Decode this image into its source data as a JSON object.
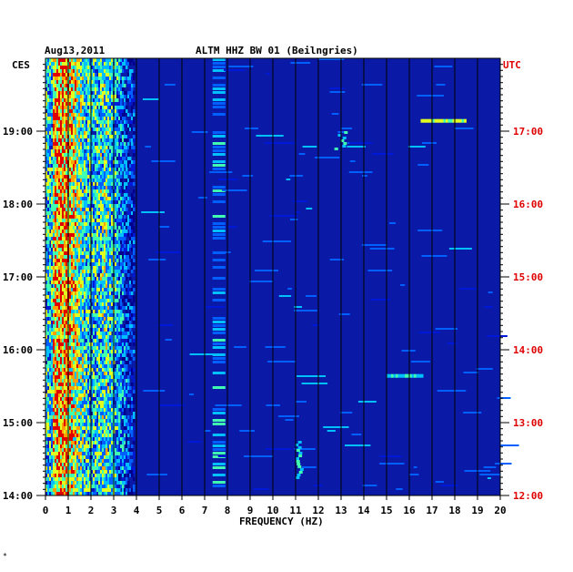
{
  "chart_data": {
    "type": "heatmap",
    "date": "Aug13,2011",
    "title": "ALTM HHZ BW 01 (Beilngries)",
    "left_timezone": "CES",
    "right_timezone": "UTC",
    "xlabel": "FREQUENCY (HZ)",
    "xlim": [
      0,
      20
    ],
    "x_ticks": [
      "0",
      "1",
      "2",
      "3",
      "4",
      "5",
      "6",
      "7",
      "8",
      "9",
      "10",
      "11",
      "12",
      "13",
      "14",
      "15",
      "16",
      "17",
      "18",
      "19",
      "20"
    ],
    "left_ticks": [
      "14:00",
      "15:00",
      "16:00",
      "17:00",
      "18:00",
      "19:00"
    ],
    "right_ticks": [
      "12:00",
      "13:00",
      "14:00",
      "15:00",
      "16:00",
      "17:00"
    ],
    "time_range_ces": [
      "14:00",
      "19:52"
    ],
    "grid": "vertical lines at each 1 Hz",
    "colormap": [
      "#00008c",
      "#0018d8",
      "#0060ff",
      "#00c0ff",
      "#40ffb0",
      "#e0ff20",
      "#ffa000",
      "#e00000"
    ],
    "background_color": "#0a1aa6",
    "features": [
      {
        "name": "broadband microseism/noise band",
        "freq_range_hz": [
          0,
          3.9
        ],
        "time": "entire record",
        "intensity": "high"
      },
      {
        "name": "narrow line",
        "freq_hz": 7.6,
        "time": "entire record",
        "intensity": "medium"
      },
      {
        "name": "event cluster",
        "freq_range_hz": [
          10.9,
          11.2
        ],
        "time_ces": [
          "14:15",
          "14:45"
        ],
        "intensity": "medium"
      },
      {
        "name": "event cluster",
        "freq_range_hz": [
          12.7,
          13.2
        ],
        "time_ces": [
          "18:45",
          "19:00"
        ],
        "intensity": "medium"
      },
      {
        "name": "tonal band",
        "freq_range_hz": [
          15.0,
          16.6
        ],
        "time_ces": "15:40",
        "intensity": "medium"
      },
      {
        "name": "tonal band",
        "freq_range_hz": [
          16.5,
          18.5
        ],
        "time_ces": "19:10",
        "intensity": "high"
      }
    ]
  },
  "footnote": "*"
}
